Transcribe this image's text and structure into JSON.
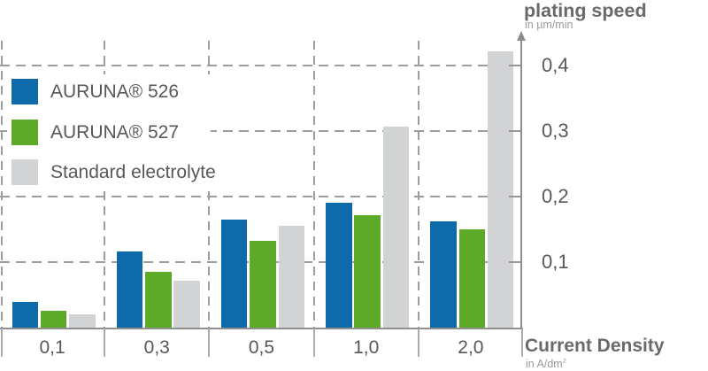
{
  "title": {
    "text": "plating speed",
    "unit": "in µm/min"
  },
  "x_axis": {
    "title": "Current Density",
    "unit": "in A/dm²"
  },
  "legend": {
    "items": [
      {
        "label": "AURUNA® 526",
        "color": "#0e6aa8"
      },
      {
        "label": "AURUNA® 527",
        "color": "#5caa28"
      },
      {
        "label": "Standard electrolyte",
        "color": "#d2d3d4"
      }
    ]
  },
  "chart_data": {
    "type": "bar",
    "title": "plating speed",
    "ylabel": "in µm/min",
    "xlabel": "Current Density in A/dm²",
    "categories": [
      "0,1",
      "0,3",
      "0,5",
      "1,0",
      "2,0"
    ],
    "series": [
      {
        "name": "AURUNA® 526",
        "color": "#0e6aa8",
        "values": [
          0.04,
          0.116,
          0.165,
          0.191,
          0.162
        ]
      },
      {
        "name": "AURUNA® 527",
        "color": "#5caa28",
        "values": [
          0.026,
          0.085,
          0.132,
          0.172,
          0.15
        ]
      },
      {
        "name": "Standard electrolyte",
        "color": "#d2d3d4",
        "values": [
          0.021,
          0.072,
          0.156,
          0.306,
          0.421
        ]
      }
    ],
    "y_ticks": [
      {
        "label": "0,4",
        "value": 0.4
      },
      {
        "label": "0,3",
        "value": 0.3
      },
      {
        "label": "0,2",
        "value": 0.2
      },
      {
        "label": "0,1",
        "value": 0.1
      }
    ],
    "ylim": [
      0,
      0.44
    ],
    "grid": "dashed",
    "legend_position": "top-left",
    "y_axis_side": "right"
  },
  "colors": {
    "grid": "#9d9d9d",
    "axis": "#8f8f8f",
    "text": "#58585a",
    "muted_text": "#9b9b9b"
  }
}
